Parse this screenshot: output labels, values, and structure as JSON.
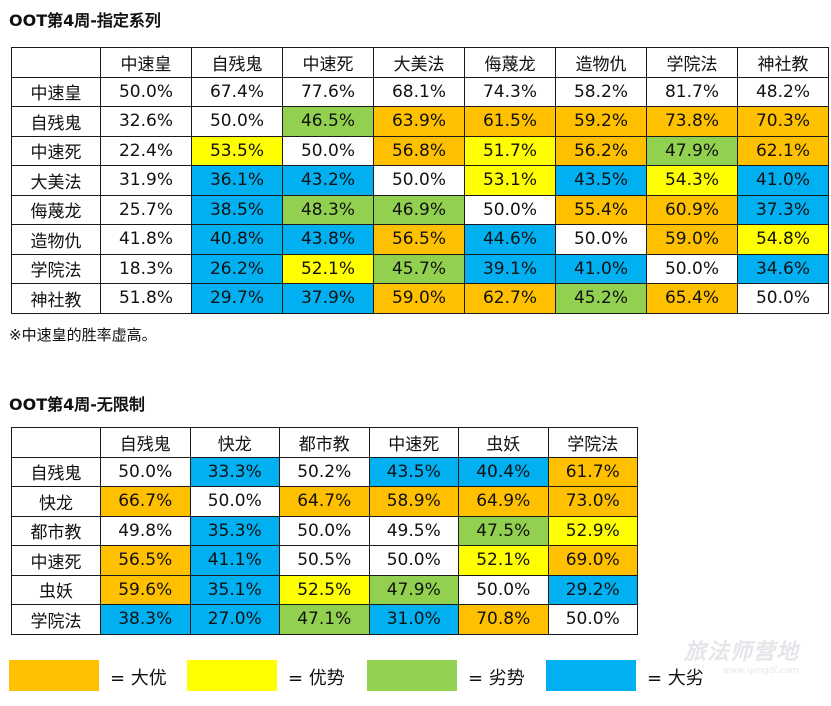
{
  "table1": {
    "title": "OOT第4周-指定系列",
    "headers": [
      "中速皇",
      "自残鬼",
      "中速死",
      "大美法",
      "侮蔑龙",
      "造物仇",
      "学院法",
      "神社教"
    ],
    "rows": [
      {
        "name": "中速皇",
        "cells": [
          [
            "50.0%",
            "n"
          ],
          [
            "67.4%",
            "n"
          ],
          [
            "77.6%",
            "n"
          ],
          [
            "68.1%",
            "n"
          ],
          [
            "74.3%",
            "n"
          ],
          [
            "58.2%",
            "n"
          ],
          [
            "81.7%",
            "n"
          ],
          [
            "48.2%",
            "n"
          ]
        ]
      },
      {
        "name": "自残鬼",
        "cells": [
          [
            "32.6%",
            "n"
          ],
          [
            "50.0%",
            "n"
          ],
          [
            "46.5%",
            "dis"
          ],
          [
            "63.9%",
            "big-adv"
          ],
          [
            "61.5%",
            "big-adv"
          ],
          [
            "59.2%",
            "big-adv"
          ],
          [
            "73.8%",
            "big-adv"
          ],
          [
            "70.3%",
            "big-adv"
          ]
        ]
      },
      {
        "name": "中速死",
        "cells": [
          [
            "22.4%",
            "n"
          ],
          [
            "53.5%",
            "adv"
          ],
          [
            "50.0%",
            "n"
          ],
          [
            "56.8%",
            "big-adv"
          ],
          [
            "51.7%",
            "adv"
          ],
          [
            "56.2%",
            "big-adv"
          ],
          [
            "47.9%",
            "dis"
          ],
          [
            "62.1%",
            "big-adv"
          ]
        ]
      },
      {
        "name": "大美法",
        "cells": [
          [
            "31.9%",
            "n"
          ],
          [
            "36.1%",
            "big-dis"
          ],
          [
            "43.2%",
            "big-dis"
          ],
          [
            "50.0%",
            "n"
          ],
          [
            "53.1%",
            "adv"
          ],
          [
            "43.5%",
            "big-dis"
          ],
          [
            "54.3%",
            "adv"
          ],
          [
            "41.0%",
            "big-dis"
          ]
        ]
      },
      {
        "name": "侮蔑龙",
        "cells": [
          [
            "25.7%",
            "n"
          ],
          [
            "38.5%",
            "big-dis"
          ],
          [
            "48.3%",
            "dis"
          ],
          [
            "46.9%",
            "dis"
          ],
          [
            "50.0%",
            "n"
          ],
          [
            "55.4%",
            "big-adv"
          ],
          [
            "60.9%",
            "big-adv"
          ],
          [
            "37.3%",
            "big-dis"
          ]
        ]
      },
      {
        "name": "造物仇",
        "cells": [
          [
            "41.8%",
            "n"
          ],
          [
            "40.8%",
            "big-dis"
          ],
          [
            "43.8%",
            "big-dis"
          ],
          [
            "56.5%",
            "big-adv"
          ],
          [
            "44.6%",
            "big-dis"
          ],
          [
            "50.0%",
            "n"
          ],
          [
            "59.0%",
            "big-adv"
          ],
          [
            "54.8%",
            "adv"
          ]
        ]
      },
      {
        "name": "学院法",
        "cells": [
          [
            "18.3%",
            "n"
          ],
          [
            "26.2%",
            "big-dis"
          ],
          [
            "52.1%",
            "adv"
          ],
          [
            "45.7%",
            "dis"
          ],
          [
            "39.1%",
            "big-dis"
          ],
          [
            "41.0%",
            "big-dis"
          ],
          [
            "50.0%",
            "n"
          ],
          [
            "34.6%",
            "big-dis"
          ]
        ]
      },
      {
        "name": "神社教",
        "cells": [
          [
            "51.8%",
            "n"
          ],
          [
            "29.7%",
            "big-dis"
          ],
          [
            "37.9%",
            "big-dis"
          ],
          [
            "59.0%",
            "big-adv"
          ],
          [
            "62.7%",
            "big-adv"
          ],
          [
            "45.2%",
            "dis"
          ],
          [
            "65.4%",
            "big-adv"
          ],
          [
            "50.0%",
            "n"
          ]
        ]
      }
    ],
    "note": "※中速皇的胜率虚高。"
  },
  "table2": {
    "title": "OOT第4周-无限制",
    "headers": [
      "自残鬼",
      "快龙",
      "都市教",
      "中速死",
      "虫妖",
      "学院法"
    ],
    "rows": [
      {
        "name": "自残鬼",
        "cells": [
          [
            "50.0%",
            "n"
          ],
          [
            "33.3%",
            "big-dis"
          ],
          [
            "50.2%",
            "n"
          ],
          [
            "43.5%",
            "big-dis"
          ],
          [
            "40.4%",
            "big-dis"
          ],
          [
            "61.7%",
            "big-adv"
          ]
        ]
      },
      {
        "name": "快龙",
        "cells": [
          [
            "66.7%",
            "big-adv"
          ],
          [
            "50.0%",
            "n"
          ],
          [
            "64.7%",
            "big-adv"
          ],
          [
            "58.9%",
            "big-adv"
          ],
          [
            "64.9%",
            "big-adv"
          ],
          [
            "73.0%",
            "big-adv"
          ]
        ]
      },
      {
        "name": "都市教",
        "cells": [
          [
            "49.8%",
            "n"
          ],
          [
            "35.3%",
            "big-dis"
          ],
          [
            "50.0%",
            "n"
          ],
          [
            "49.5%",
            "n"
          ],
          [
            "47.5%",
            "dis"
          ],
          [
            "52.9%",
            "adv"
          ]
        ]
      },
      {
        "name": "中速死",
        "cells": [
          [
            "56.5%",
            "big-adv"
          ],
          [
            "41.1%",
            "big-dis"
          ],
          [
            "50.5%",
            "n"
          ],
          [
            "50.0%",
            "n"
          ],
          [
            "52.1%",
            "adv"
          ],
          [
            "69.0%",
            "big-adv"
          ]
        ]
      },
      {
        "name": "虫妖",
        "cells": [
          [
            "59.6%",
            "big-adv"
          ],
          [
            "35.1%",
            "big-dis"
          ],
          [
            "52.5%",
            "adv"
          ],
          [
            "47.9%",
            "dis"
          ],
          [
            "50.0%",
            "n"
          ],
          [
            "29.2%",
            "big-dis"
          ]
        ]
      },
      {
        "name": "学院法",
        "cells": [
          [
            "38.3%",
            "big-dis"
          ],
          [
            "27.0%",
            "big-dis"
          ],
          [
            "47.1%",
            "dis"
          ],
          [
            "31.0%",
            "big-dis"
          ],
          [
            "70.8%",
            "big-adv"
          ],
          [
            "50.0%",
            "n"
          ]
        ]
      }
    ]
  },
  "legend": [
    {
      "key": "big-adv",
      "label": "= 大优",
      "color": "#ffc000"
    },
    {
      "key": "adv",
      "label": "= 优势",
      "color": "#ffff00"
    },
    {
      "key": "dis",
      "label": "= 劣势",
      "color": "#92d050"
    },
    {
      "key": "big-dis",
      "label": "= 大劣",
      "color": "#00b0f0"
    }
  ],
  "watermark": {
    "main": "旅法师营地",
    "sub": "www.iyingdi.com"
  }
}
